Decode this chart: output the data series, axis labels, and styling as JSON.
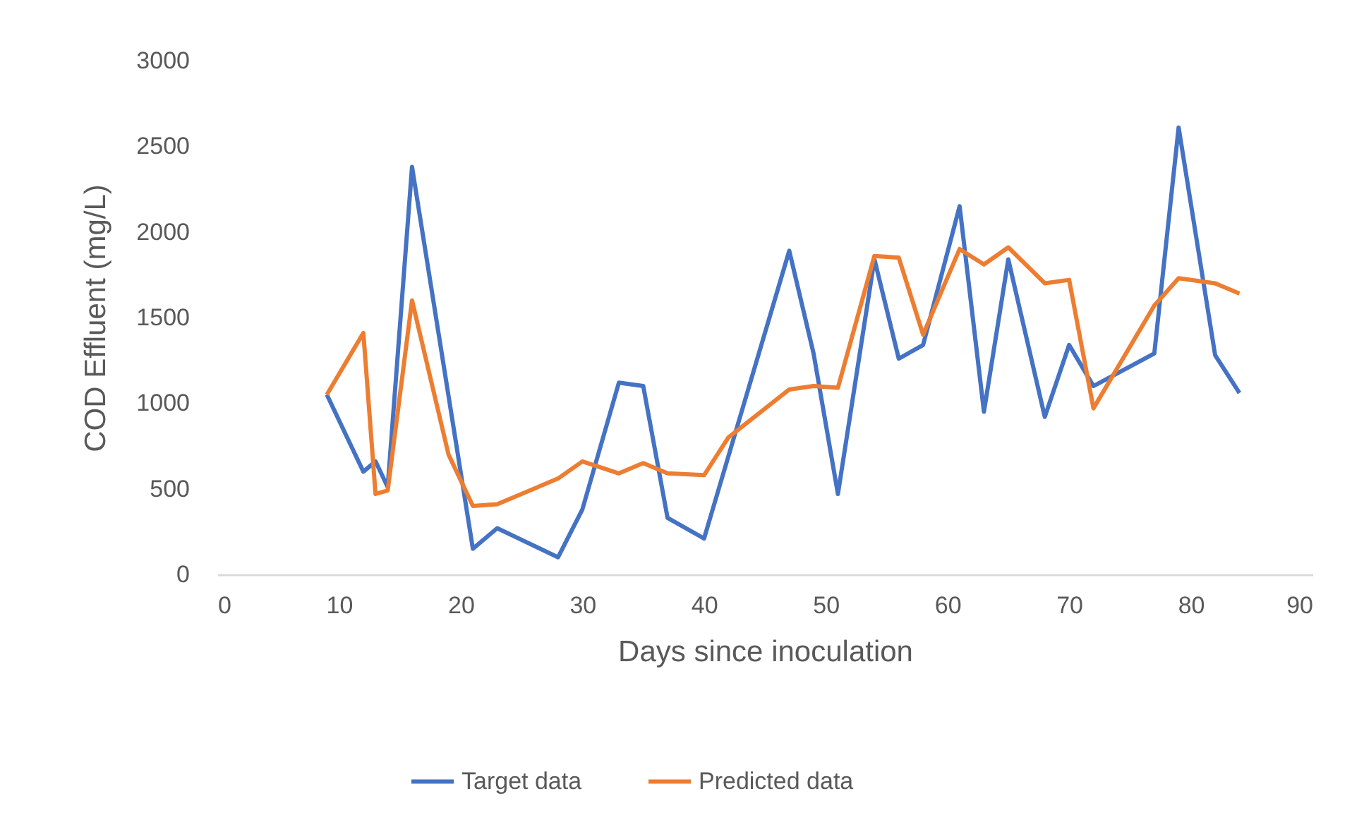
{
  "chart_data": {
    "type": "line",
    "xlabel": "Days since inoculation",
    "ylabel": "COD Effluent (mg/L)",
    "xlim": [
      0,
      90
    ],
    "xticks": [
      0,
      10,
      20,
      30,
      40,
      50,
      60,
      70,
      80,
      90
    ],
    "ylim": [
      0,
      3000
    ],
    "yticks": [
      0,
      500,
      1000,
      1500,
      2000,
      2500,
      3000
    ],
    "legend": "bottom",
    "line_style": "solid",
    "series": [
      {
        "name": "Target data",
        "color": "#4472c4",
        "x": [
          9,
          12,
          13,
          14,
          16,
          21,
          23,
          28,
          30,
          33,
          35,
          37,
          40,
          47,
          49,
          51,
          54,
          56,
          58,
          61,
          63,
          65,
          68,
          70,
          72,
          77,
          79,
          82,
          84
        ],
        "values": [
          1050,
          600,
          660,
          510,
          2380,
          150,
          270,
          100,
          380,
          1120,
          1100,
          330,
          210,
          1890,
          1290,
          470,
          1840,
          1260,
          1340,
          2150,
          950,
          1840,
          920,
          1340,
          1100,
          1290,
          2610,
          1280,
          1060
        ]
      },
      {
        "name": "Predicted data",
        "color": "#ed7d31",
        "x": [
          9,
          12,
          13,
          14,
          16,
          19,
          21,
          23,
          28,
          30,
          33,
          35,
          37,
          40,
          42,
          47,
          49,
          51,
          54,
          56,
          58,
          61,
          63,
          65,
          68,
          70,
          72,
          77,
          79,
          82,
          84
        ],
        "values": [
          1050,
          1410,
          470,
          490,
          1600,
          700,
          400,
          410,
          560,
          660,
          590,
          650,
          590,
          580,
          800,
          1080,
          1100,
          1090,
          1860,
          1850,
          1400,
          1900,
          1810,
          1910,
          1700,
          1720,
          970,
          1570,
          1730,
          1700,
          1640
        ]
      }
    ]
  }
}
